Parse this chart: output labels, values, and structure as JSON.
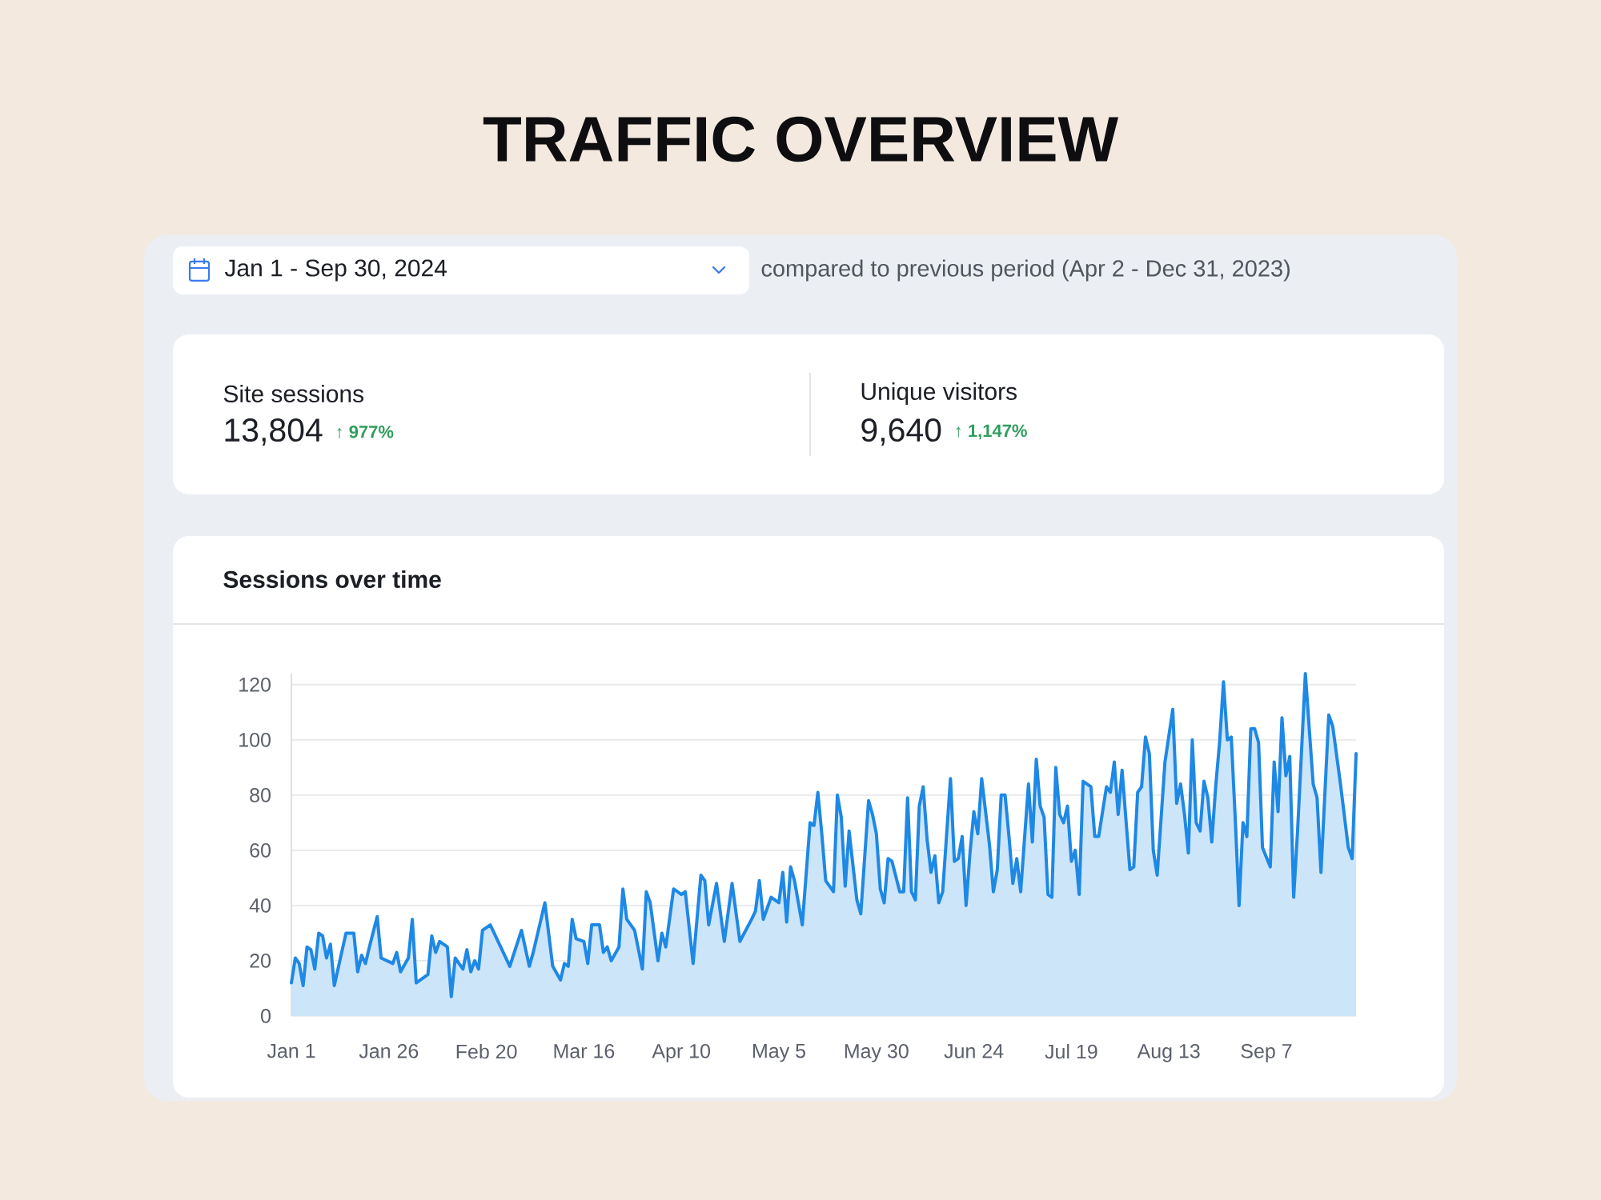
{
  "chart_data": [
    {
      "type": "other",
      "title": "TRAFFIC OVERVIEW",
      "annotations": [
        "Jan 1 - Sep 30, 2024",
        "compared to previous period (Apr 2 - Dec 31, 2023)",
        "Site sessions",
        "13,804",
        "↑ 977%",
        "Unique visitors",
        "9,640",
        "↑ 1,147%"
      ]
    },
    {
      "type": "area",
      "title": "Sessions over time",
      "color": "#1e88e5",
      "x": [
        "2024-01-01",
        "2024-01-02",
        "2024-01-03",
        "2024-01-04",
        "2024-01-05",
        "2024-01-06",
        "2024-01-07",
        "2024-01-08",
        "2024-01-09",
        "2024-01-10",
        "2024-01-11",
        "2024-01-12",
        "2024-01-15",
        "2024-01-17",
        "2024-01-18",
        "2024-01-19",
        "2024-01-20",
        "2024-01-21",
        "2024-01-23",
        "2024-01-24",
        "2024-01-27",
        "2024-01-28",
        "2024-01-29",
        "2024-01-31",
        "2024-02-01",
        "2024-02-02",
        "2024-02-05",
        "2024-02-06",
        "2024-02-07",
        "2024-02-08",
        "2024-02-10",
        "2024-02-11",
        "2024-02-12",
        "2024-02-14",
        "2024-02-15",
        "2024-02-16",
        "2024-02-17",
        "2024-02-18",
        "2024-02-19",
        "2024-02-21",
        "2024-02-26",
        "2024-02-29",
        "2024-03-02",
        "2024-03-03",
        "2024-03-06",
        "2024-03-08",
        "2024-03-10",
        "2024-03-11",
        "2024-03-12",
        "2024-03-13",
        "2024-03-14",
        "2024-03-16",
        "2024-03-17",
        "2024-03-18",
        "2024-03-20",
        "2024-03-21",
        "2024-03-22",
        "2024-03-23",
        "2024-03-25",
        "2024-03-26",
        "2024-03-27",
        "2024-03-29",
        "2024-03-31",
        "2024-04-01",
        "2024-04-02",
        "2024-04-04",
        "2024-04-05",
        "2024-04-06",
        "2024-04-08",
        "2024-04-10",
        "2024-04-11",
        "2024-04-13",
        "2024-04-15",
        "2024-04-16",
        "2024-04-17",
        "2024-04-19",
        "2024-04-21",
        "2024-04-23",
        "2024-04-25",
        "2024-04-28",
        "2024-04-29",
        "2024-04-30",
        "2024-05-01",
        "2024-05-03",
        "2024-05-05",
        "2024-05-06",
        "2024-05-07",
        "2024-05-08",
        "2024-05-09",
        "2024-05-11",
        "2024-05-13",
        "2024-05-14",
        "2024-05-15",
        "2024-05-16",
        "2024-05-17",
        "2024-05-19",
        "2024-05-20",
        "2024-05-21",
        "2024-05-22",
        "2024-05-23",
        "2024-05-25",
        "2024-05-26",
        "2024-05-28",
        "2024-05-29",
        "2024-05-30",
        "2024-05-31",
        "2024-06-01",
        "2024-06-02",
        "2024-06-03",
        "2024-06-05",
        "2024-06-06",
        "2024-06-07",
        "2024-06-08",
        "2024-06-09",
        "2024-06-10",
        "2024-06-11",
        "2024-06-12",
        "2024-06-13",
        "2024-06-14",
        "2024-06-15",
        "2024-06-16",
        "2024-06-18",
        "2024-06-19",
        "2024-06-20",
        "2024-06-21",
        "2024-06-22",
        "2024-06-23",
        "2024-06-24",
        "2024-06-25",
        "2024-06-26",
        "2024-06-27",
        "2024-06-28",
        "2024-06-29",
        "2024-06-30",
        "2024-07-01",
        "2024-07-02",
        "2024-07-03",
        "2024-07-04",
        "2024-07-05",
        "2024-07-06",
        "2024-07-08",
        "2024-07-09",
        "2024-07-10",
        "2024-07-11",
        "2024-07-12",
        "2024-07-13",
        "2024-07-14",
        "2024-07-15",
        "2024-07-16",
        "2024-07-17",
        "2024-07-18",
        "2024-07-19",
        "2024-07-20",
        "2024-07-21",
        "2024-07-22",
        "2024-07-24",
        "2024-07-25",
        "2024-07-26",
        "2024-07-28",
        "2024-07-29",
        "2024-07-30",
        "2024-07-31",
        "2024-08-01",
        "2024-08-02",
        "2024-08-03",
        "2024-08-04",
        "2024-08-05",
        "2024-08-06",
        "2024-08-07",
        "2024-08-08",
        "2024-08-09",
        "2024-08-10",
        "2024-08-12",
        "2024-08-14",
        "2024-08-15",
        "2024-08-16",
        "2024-08-17",
        "2024-08-18",
        "2024-08-19",
        "2024-08-20",
        "2024-08-21",
        "2024-08-22",
        "2024-08-23",
        "2024-08-24",
        "2024-08-25",
        "2024-08-26",
        "2024-08-27",
        "2024-08-28",
        "2024-08-29",
        "2024-08-30",
        "2024-08-31",
        "2024-09-01",
        "2024-09-02",
        "2024-09-03",
        "2024-09-04",
        "2024-09-05",
        "2024-09-06",
        "2024-09-08",
        "2024-09-09",
        "2024-09-10",
        "2024-09-11",
        "2024-09-12",
        "2024-09-13",
        "2024-09-14",
        "2024-09-15",
        "2024-09-17",
        "2024-09-19",
        "2024-09-20",
        "2024-09-21",
        "2024-09-23",
        "2024-09-24",
        "2024-09-26",
        "2024-09-28",
        "2024-09-29",
        "2024-09-30"
      ],
      "values": [
        12,
        21,
        19,
        11,
        25,
        24,
        17,
        30,
        29,
        21,
        26,
        11,
        30,
        30,
        16,
        22,
        19,
        25,
        36,
        21,
        19,
        23,
        16,
        21,
        35,
        12,
        15,
        29,
        23,
        27,
        25,
        7,
        21,
        17,
        24,
        16,
        20,
        17,
        31,
        33,
        18,
        31,
        18,
        23,
        41,
        18,
        13,
        19,
        18,
        35,
        28,
        27,
        19,
        33,
        33,
        23,
        25,
        20,
        25,
        46,
        35,
        31,
        17,
        45,
        41,
        20,
        30,
        25,
        46,
        44,
        45,
        19,
        51,
        49,
        33,
        48,
        27,
        48,
        27,
        35,
        38,
        49,
        35,
        43,
        41,
        52,
        34,
        54,
        49,
        33,
        70,
        69,
        81,
        66,
        49,
        45,
        80,
        72,
        47,
        67,
        42,
        37,
        78,
        73,
        66,
        46,
        41,
        57,
        56,
        45,
        45,
        79,
        45,
        42,
        76,
        83,
        64,
        52,
        58,
        41,
        45,
        86,
        56,
        57,
        65,
        40,
        59,
        74,
        66,
        86,
        74,
        62,
        45,
        53,
        80,
        80,
        65,
        48,
        57,
        45,
        84,
        63,
        93,
        76,
        72,
        44,
        43,
        90,
        73,
        70,
        76,
        56,
        60,
        44,
        85,
        83,
        65,
        65,
        83,
        81,
        92,
        73,
        89,
        71,
        53,
        54,
        81,
        83,
        101,
        95,
        60,
        51,
        92,
        111,
        77,
        84,
        73,
        59,
        100,
        70,
        67,
        85,
        79,
        63,
        83,
        99,
        121,
        100,
        101,
        72,
        40,
        70,
        65,
        104,
        104,
        99,
        61,
        54,
        92,
        74,
        108,
        87,
        94,
        43,
        67,
        124,
        84,
        79,
        52,
        109,
        105,
        84,
        61,
        57,
        95
      ],
      "xlim": [
        "2024-01-01",
        "2024-09-30"
      ],
      "xticks": [
        {
          "value": "2024-01-01",
          "label": "Jan 1"
        },
        {
          "value": "2024-01-26",
          "label": "Jan 26"
        },
        {
          "value": "2024-02-20",
          "label": "Feb 20"
        },
        {
          "value": "2024-03-16",
          "label": "Mar 16"
        },
        {
          "value": "2024-04-10",
          "label": "Apr 10"
        },
        {
          "value": "2024-05-05",
          "label": "May 5"
        },
        {
          "value": "2024-05-30",
          "label": "May 30"
        },
        {
          "value": "2024-06-24",
          "label": "Jun 24"
        },
        {
          "value": "2024-07-19",
          "label": "Jul 19"
        },
        {
          "value": "2024-08-13",
          "label": "Aug 13"
        },
        {
          "value": "2024-09-07",
          "label": "Sep 7"
        }
      ],
      "ylim": [
        0,
        124
      ],
      "yticks": [
        0,
        20,
        40,
        60,
        80,
        100,
        120
      ],
      "grid": "y"
    }
  ]
}
